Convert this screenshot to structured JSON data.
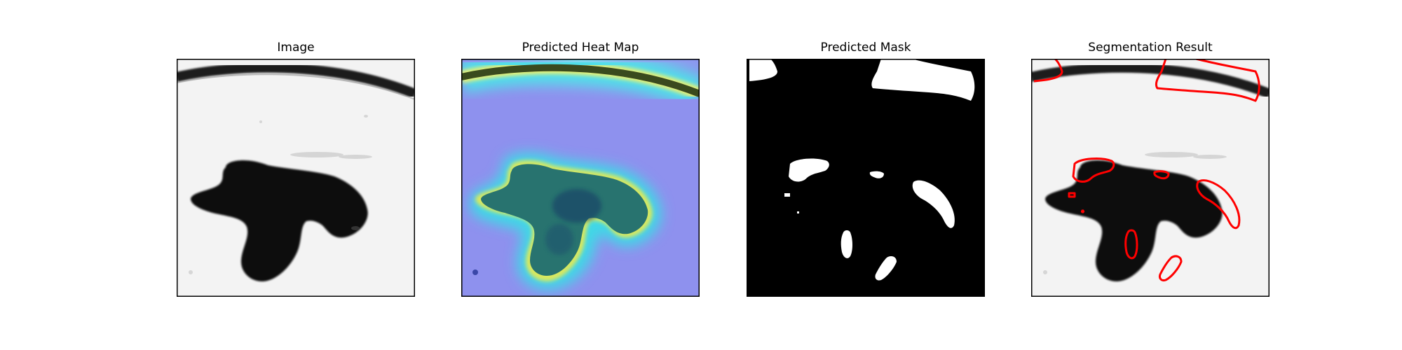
{
  "panels": [
    {
      "id": "image",
      "title": "Image"
    },
    {
      "id": "heatmap",
      "title": "Predicted Heat Map"
    },
    {
      "id": "mask",
      "title": "Predicted Mask"
    },
    {
      "id": "segmentation",
      "title": "Segmentation Result"
    }
  ],
  "colors": {
    "frame": "#000000",
    "background_gray": "#f2f2f2",
    "blob_dark": "#111111",
    "mask_foreground": "#ffffff",
    "mask_background": "#000000",
    "contour": "#ff0000",
    "heatmap_low": "#8c8ff0",
    "heatmap_mid": "#2fd6e0",
    "heatmap_high": "#f3f36a"
  }
}
